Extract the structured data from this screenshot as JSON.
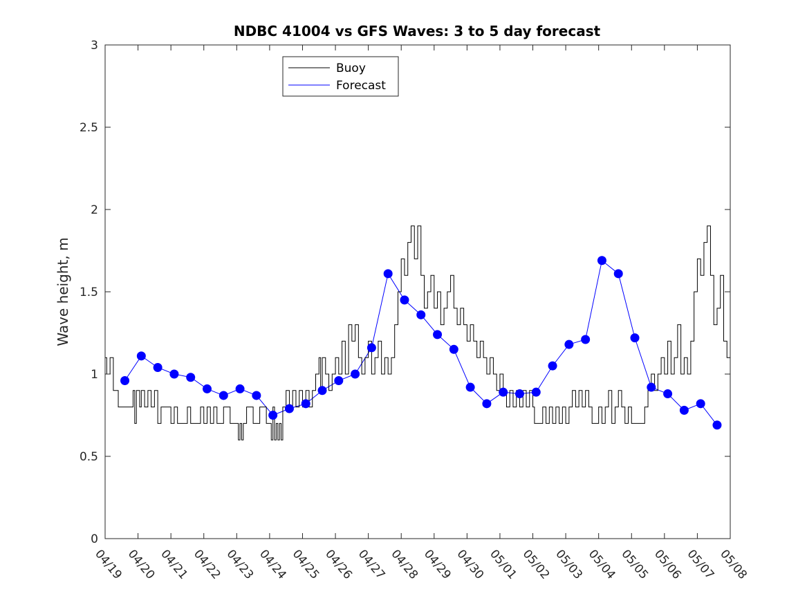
{
  "chart_data": {
    "type": "line",
    "title": "NDBC 41004 vs GFS Waves: 3 to 5 day forecast",
    "xlabel": "",
    "ylabel": "Wave height, m",
    "ylim": [
      0,
      3
    ],
    "yticks": [
      "0",
      "0.5",
      "1",
      "1.5",
      "2",
      "2.5",
      "3"
    ],
    "x_unit": "days since 04/19",
    "xlim": [
      0,
      19
    ],
    "xticks": [
      "04/19",
      "04/20",
      "04/21",
      "04/22",
      "04/23",
      "04/24",
      "04/25",
      "04/26",
      "04/27",
      "04/28",
      "04/29",
      "04/30",
      "05/01",
      "05/02",
      "05/03",
      "05/04",
      "05/05",
      "05/06",
      "05/07",
      "05/08"
    ],
    "grid": false,
    "legend": {
      "position": "top-left",
      "entries": [
        {
          "name": "Buoy",
          "color": "#000000"
        },
        {
          "name": "Forecast",
          "color": "#0000ff"
        }
      ]
    },
    "series": [
      {
        "name": "Buoy",
        "color": "#000000",
        "style": "step",
        "points": [
          [
            0.0,
            1.1
          ],
          [
            0.05,
            1.0
          ],
          [
            0.15,
            1.1
          ],
          [
            0.25,
            0.9
          ],
          [
            0.35,
            0.9
          ],
          [
            0.4,
            0.8
          ],
          [
            0.8,
            0.8
          ],
          [
            0.85,
            0.9
          ],
          [
            0.9,
            0.7
          ],
          [
            0.95,
            0.9
          ],
          [
            1.05,
            0.8
          ],
          [
            1.1,
            0.9
          ],
          [
            1.2,
            0.8
          ],
          [
            1.3,
            0.9
          ],
          [
            1.4,
            0.8
          ],
          [
            1.5,
            0.9
          ],
          [
            1.6,
            0.7
          ],
          [
            1.7,
            0.8
          ],
          [
            1.8,
            0.8
          ],
          [
            2.0,
            0.7
          ],
          [
            2.1,
            0.8
          ],
          [
            2.2,
            0.7
          ],
          [
            2.4,
            0.7
          ],
          [
            2.5,
            0.8
          ],
          [
            2.6,
            0.7
          ],
          [
            2.8,
            0.7
          ],
          [
            2.9,
            0.8
          ],
          [
            3.0,
            0.7
          ],
          [
            3.1,
            0.8
          ],
          [
            3.2,
            0.7
          ],
          [
            3.3,
            0.8
          ],
          [
            3.4,
            0.7
          ],
          [
            3.5,
            0.7
          ],
          [
            3.6,
            0.8
          ],
          [
            3.8,
            0.7
          ],
          [
            4.0,
            0.7
          ],
          [
            4.05,
            0.6
          ],
          [
            4.1,
            0.7
          ],
          [
            4.15,
            0.6
          ],
          [
            4.2,
            0.7
          ],
          [
            4.3,
            0.8
          ],
          [
            4.5,
            0.7
          ],
          [
            4.7,
            0.8
          ],
          [
            4.9,
            0.7
          ],
          [
            5.0,
            0.7
          ],
          [
            5.05,
            0.6
          ],
          [
            5.1,
            0.8
          ],
          [
            5.15,
            0.6
          ],
          [
            5.2,
            0.7
          ],
          [
            5.25,
            0.6
          ],
          [
            5.3,
            0.7
          ],
          [
            5.35,
            0.6
          ],
          [
            5.4,
            0.8
          ],
          [
            5.5,
            0.9
          ],
          [
            5.6,
            0.8
          ],
          [
            5.7,
            0.9
          ],
          [
            5.8,
            0.8
          ],
          [
            5.9,
            0.9
          ],
          [
            6.0,
            0.8
          ],
          [
            6.1,
            0.9
          ],
          [
            6.2,
            0.8
          ],
          [
            6.3,
            0.9
          ],
          [
            6.4,
            1.0
          ],
          [
            6.5,
            1.1
          ],
          [
            6.55,
            0.9
          ],
          [
            6.6,
            1.1
          ],
          [
            6.7,
            1.0
          ],
          [
            6.8,
            0.9
          ],
          [
            6.9,
            1.0
          ],
          [
            7.0,
            1.1
          ],
          [
            7.1,
            1.0
          ],
          [
            7.2,
            1.2
          ],
          [
            7.3,
            1.0
          ],
          [
            7.4,
            1.3
          ],
          [
            7.5,
            1.2
          ],
          [
            7.6,
            1.3
          ],
          [
            7.7,
            1.1
          ],
          [
            7.8,
            1.0
          ],
          [
            7.9,
            1.1
          ],
          [
            8.0,
            1.2
          ],
          [
            8.1,
            1.0
          ],
          [
            8.2,
            1.1
          ],
          [
            8.3,
            1.2
          ],
          [
            8.4,
            1.0
          ],
          [
            8.5,
            1.1
          ],
          [
            8.6,
            1.0
          ],
          [
            8.7,
            1.1
          ],
          [
            8.8,
            1.3
          ],
          [
            8.9,
            1.5
          ],
          [
            9.0,
            1.7
          ],
          [
            9.1,
            1.6
          ],
          [
            9.2,
            1.8
          ],
          [
            9.3,
            1.9
          ],
          [
            9.4,
            1.7
          ],
          [
            9.5,
            1.9
          ],
          [
            9.6,
            1.6
          ],
          [
            9.7,
            1.4
          ],
          [
            9.8,
            1.5
          ],
          [
            9.9,
            1.6
          ],
          [
            10.0,
            1.4
          ],
          [
            10.1,
            1.5
          ],
          [
            10.2,
            1.3
          ],
          [
            10.3,
            1.4
          ],
          [
            10.4,
            1.5
          ],
          [
            10.5,
            1.6
          ],
          [
            10.6,
            1.4
          ],
          [
            10.7,
            1.3
          ],
          [
            10.8,
            1.4
          ],
          [
            10.9,
            1.3
          ],
          [
            11.0,
            1.2
          ],
          [
            11.1,
            1.3
          ],
          [
            11.2,
            1.2
          ],
          [
            11.3,
            1.1
          ],
          [
            11.4,
            1.2
          ],
          [
            11.5,
            1.1
          ],
          [
            11.6,
            1.0
          ],
          [
            11.7,
            1.1
          ],
          [
            11.8,
            1.0
          ],
          [
            11.9,
            0.9
          ],
          [
            12.0,
            1.0
          ],
          [
            12.1,
            0.9
          ],
          [
            12.2,
            0.8
          ],
          [
            12.3,
            0.9
          ],
          [
            12.4,
            0.8
          ],
          [
            12.5,
            0.9
          ],
          [
            12.6,
            0.8
          ],
          [
            12.7,
            0.9
          ],
          [
            12.8,
            0.8
          ],
          [
            12.9,
            0.9
          ],
          [
            13.0,
            0.8
          ],
          [
            13.05,
            0.7
          ],
          [
            13.3,
            0.8
          ],
          [
            13.4,
            0.7
          ],
          [
            13.5,
            0.8
          ],
          [
            13.6,
            0.7
          ],
          [
            13.7,
            0.8
          ],
          [
            13.8,
            0.7
          ],
          [
            13.9,
            0.8
          ],
          [
            14.0,
            0.7
          ],
          [
            14.1,
            0.8
          ],
          [
            14.2,
            0.9
          ],
          [
            14.3,
            0.8
          ],
          [
            14.4,
            0.9
          ],
          [
            14.5,
            0.8
          ],
          [
            14.6,
            0.9
          ],
          [
            14.7,
            0.8
          ],
          [
            14.8,
            0.7
          ],
          [
            15.0,
            0.8
          ],
          [
            15.1,
            0.7
          ],
          [
            15.2,
            0.8
          ],
          [
            15.3,
            0.9
          ],
          [
            15.4,
            0.7
          ],
          [
            15.5,
            0.8
          ],
          [
            15.6,
            0.9
          ],
          [
            15.7,
            0.8
          ],
          [
            15.8,
            0.7
          ],
          [
            15.9,
            0.8
          ],
          [
            16.0,
            0.7
          ],
          [
            16.2,
            0.7
          ],
          [
            16.4,
            0.8
          ],
          [
            16.5,
            0.9
          ],
          [
            16.6,
            1.0
          ],
          [
            16.7,
            0.9
          ],
          [
            16.8,
            1.0
          ],
          [
            16.9,
            1.1
          ],
          [
            17.0,
            1.0
          ],
          [
            17.1,
            1.2
          ],
          [
            17.2,
            1.0
          ],
          [
            17.3,
            1.1
          ],
          [
            17.4,
            1.3
          ],
          [
            17.5,
            1.0
          ],
          [
            17.6,
            1.1
          ],
          [
            17.7,
            1.0
          ],
          [
            17.8,
            1.2
          ],
          [
            17.9,
            1.5
          ],
          [
            18.0,
            1.7
          ],
          [
            18.1,
            1.6
          ],
          [
            18.2,
            1.8
          ],
          [
            18.3,
            1.9
          ],
          [
            18.4,
            1.6
          ],
          [
            18.5,
            1.3
          ],
          [
            18.6,
            1.4
          ],
          [
            18.7,
            1.6
          ],
          [
            18.8,
            1.2
          ],
          [
            18.9,
            1.1
          ],
          [
            19.0,
            1.0
          ]
        ]
      },
      {
        "name": "Forecast",
        "color": "#0000ff",
        "style": "line",
        "points": [
          [
            0.6,
            0.96
          ],
          [
            1.1,
            1.11
          ],
          [
            1.6,
            1.04
          ],
          [
            2.1,
            1.0
          ],
          [
            2.6,
            0.98
          ],
          [
            3.1,
            0.91
          ],
          [
            3.6,
            0.87
          ],
          [
            4.1,
            0.91
          ],
          [
            4.6,
            0.87
          ],
          [
            5.1,
            0.75
          ],
          [
            5.6,
            0.79
          ],
          [
            6.1,
            0.82
          ],
          [
            6.6,
            0.9
          ],
          [
            7.1,
            0.96
          ],
          [
            7.6,
            1.0
          ],
          [
            8.1,
            1.16
          ],
          [
            8.6,
            1.61
          ],
          [
            9.1,
            1.45
          ],
          [
            9.6,
            1.36
          ],
          [
            10.1,
            1.24
          ],
          [
            10.6,
            1.15
          ],
          [
            11.1,
            0.92
          ],
          [
            11.6,
            0.82
          ],
          [
            12.1,
            0.89
          ],
          [
            12.6,
            0.88
          ],
          [
            13.1,
            0.89
          ],
          [
            13.6,
            1.05
          ],
          [
            14.1,
            1.18
          ],
          [
            14.6,
            1.21
          ],
          [
            15.1,
            1.69
          ],
          [
            15.6,
            1.61
          ],
          [
            16.1,
            1.22
          ],
          [
            16.6,
            0.92
          ],
          [
            17.1,
            0.88
          ],
          [
            17.6,
            0.78
          ],
          [
            18.1,
            0.82
          ],
          [
            18.6,
            0.69
          ]
        ]
      }
    ]
  }
}
